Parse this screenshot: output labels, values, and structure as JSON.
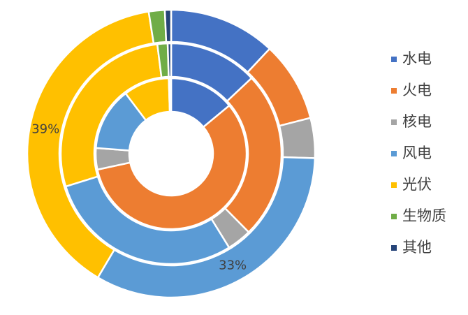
{
  "chart_data": {
    "type": "donut",
    "categories": [
      "水电",
      "火电",
      "核电",
      "风电",
      "光伏",
      "生物质",
      "其他"
    ],
    "colors": [
      "#4472c4",
      "#ed7d31",
      "#a5a5a5",
      "#5b9bd5",
      "#ffc000",
      "#70ad47",
      "#264478"
    ],
    "series": [
      {
        "values": [
          14,
          57.6,
          4.6,
          13.5,
          9.8,
          0.4,
          0.1
        ]
      },
      {
        "values": [
          13,
          24.6,
          3.6,
          29,
          27.8,
          1.5,
          0.5
        ]
      },
      {
        "values": [
          12,
          9,
          4.5,
          33,
          39,
          1.8,
          0.7
        ],
        "value_labels": [
          null,
          null,
          null,
          "33%",
          "39%",
          null,
          null
        ]
      }
    ],
    "legend": "right"
  }
}
